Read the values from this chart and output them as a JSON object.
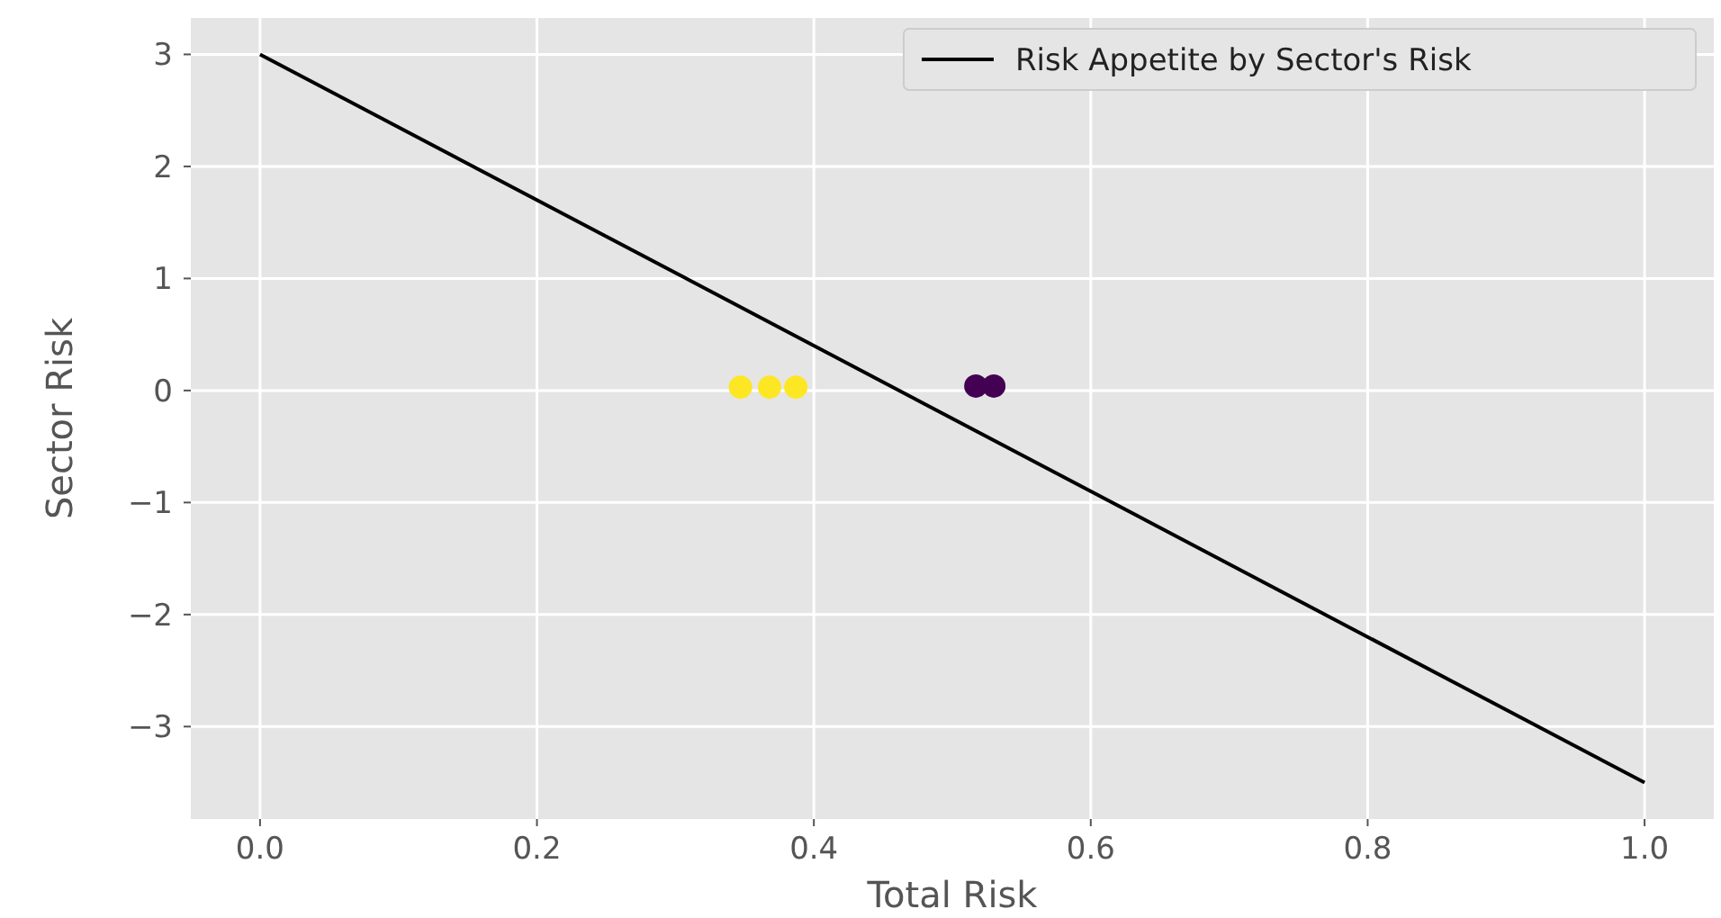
{
  "chart_data": {
    "type": "scatter",
    "xlabel": "Total Risk",
    "ylabel": "Sector Risk",
    "xlim": [
      -0.05,
      1.05
    ],
    "ylim": [
      -3.825,
      3.325
    ],
    "xticks": [
      {
        "value": 0,
        "label": "0.0"
      },
      {
        "value": 0.2,
        "label": "0.2"
      },
      {
        "value": 0.4,
        "label": "0.4"
      },
      {
        "value": 0.6,
        "label": "0.6"
      },
      {
        "value": 0.8,
        "label": "0.8"
      },
      {
        "value": 1,
        "label": "1.0"
      }
    ],
    "yticks": [
      3,
      2,
      1,
      0,
      {
        "value": -1,
        "label": "−1"
      },
      {
        "value": -2,
        "label": "−2"
      },
      {
        "value": -3,
        "label": "−3"
      }
    ],
    "grid": true,
    "legend": "top right",
    "marker": "circle",
    "series": [
      {
        "type": "line",
        "name": "Risk Appetite by Sector's Risk",
        "color": "#000000",
        "x": [
          0,
          1
        ],
        "values": [
          3,
          -3.5
        ],
        "marker": "none"
      },
      {
        "color": "#fde725",
        "x": [
          0.347,
          0.368,
          0.387
        ],
        "values": [
          0.03,
          0.03,
          0.03
        ]
      },
      {
        "color": "#440154",
        "x": [
          0.517,
          0.53
        ],
        "values": [
          0.04,
          0.04
        ]
      }
    ]
  }
}
